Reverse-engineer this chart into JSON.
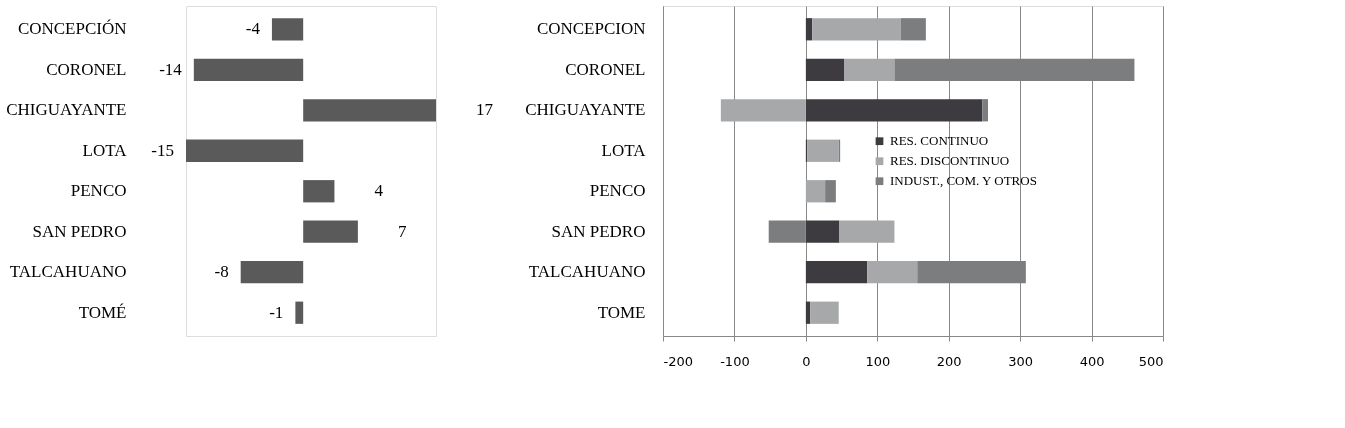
{
  "chart_data": [
    {
      "type": "bar",
      "orientation": "horizontal",
      "categories": [
        "CONCEPCIÓN",
        "CORONEL",
        "CHIGUAYANTE",
        "LOTA",
        "PENCO",
        "SAN PEDRO",
        "TALCAHUANO",
        "TOMÉ"
      ],
      "values": [
        -4,
        -14,
        17,
        -15,
        4,
        7,
        -8,
        -1
      ],
      "color": "#5a5a5a",
      "data_labels": true,
      "tick_labels": "y",
      "grid": false,
      "legend": false
    },
    {
      "type": "bar",
      "orientation": "horizontal",
      "stacked": true,
      "categories": [
        "CONCEPCION",
        "CORONEL",
        "CHIGUAYANTE",
        "LOTA",
        "PENCO",
        "SAN PEDRO",
        "TALCAHUANO",
        "TOME"
      ],
      "series": [
        {
          "name": "RES. CONTINUO",
          "color": "#3d3a40",
          "values": [
            9,
            54,
            247,
            2,
            0,
            47,
            86,
            6
          ]
        },
        {
          "name": "RES. DISCONTINUO",
          "color": "#a6a8a9",
          "values": [
            124,
            70,
            -119,
            44,
            27,
            77,
            70,
            40
          ]
        },
        {
          "name": "INDUST., COM. Y OTROS",
          "color": "#7b7d7f",
          "values": [
            35,
            336,
            8,
            2,
            15,
            -52,
            152,
            0
          ]
        }
      ],
      "xlim": [
        -200,
        500
      ],
      "xticks": [
        -200,
        -100,
        0,
        100,
        200,
        300,
        400,
        500
      ],
      "grid": "x",
      "legend": "right"
    }
  ]
}
